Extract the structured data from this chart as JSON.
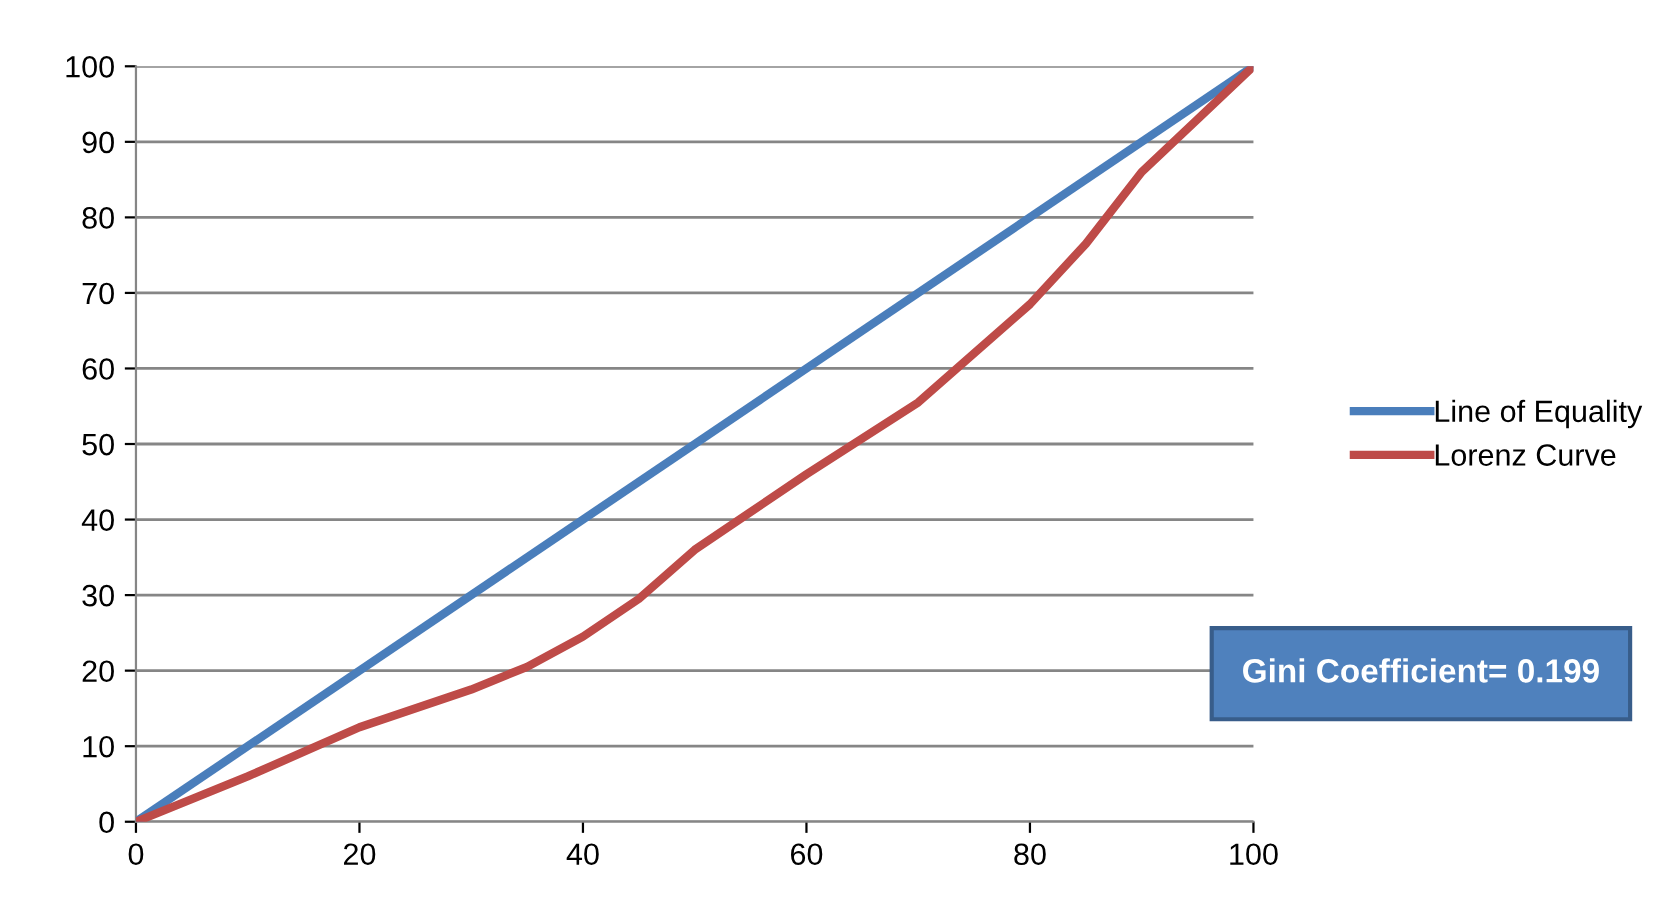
{
  "chart_data": {
    "type": "line",
    "x": [
      0,
      10,
      20,
      30,
      35,
      40,
      45,
      50,
      60,
      70,
      80,
      85,
      90,
      95,
      100
    ],
    "series": [
      {
        "name": "Line of Equality",
        "color": "#4a7ebb",
        "x": [
          0,
          100
        ],
        "values": [
          0,
          100
        ]
      },
      {
        "name": "Lorenz Curve",
        "color": "#be4b48",
        "values": [
          0,
          6,
          12.5,
          17.5,
          20.5,
          24.5,
          29.5,
          36,
          46,
          55.5,
          68.5,
          76.5,
          86,
          93,
          100
        ]
      }
    ],
    "xlim": [
      0,
      100
    ],
    "ylim": [
      0,
      100
    ],
    "xticks": [
      0,
      20,
      40,
      60,
      80,
      100
    ],
    "yticks": [
      0,
      10,
      20,
      30,
      40,
      50,
      60,
      70,
      80,
      90,
      100
    ],
    "grid": "y",
    "legend": "right",
    "marker": "none",
    "line_style": "solid",
    "annotations": [
      "Gini Coefficient= 0.199"
    ]
  }
}
